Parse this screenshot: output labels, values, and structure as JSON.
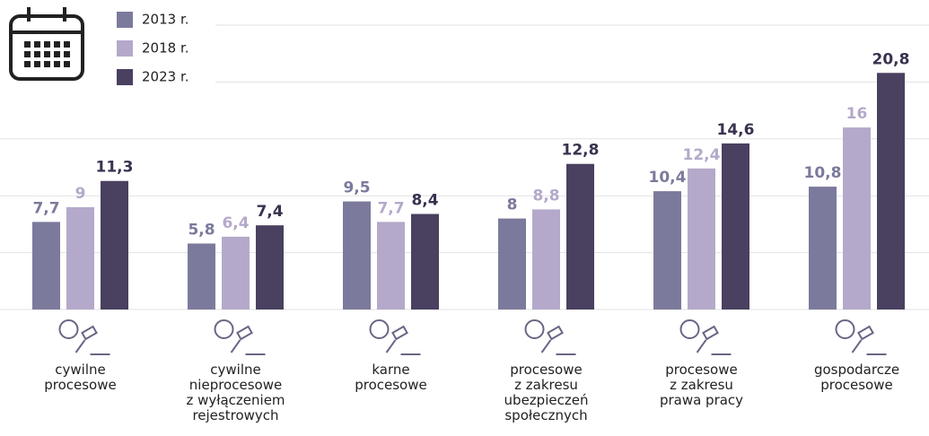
{
  "chart_data": {
    "type": "bar",
    "categories": [
      "cywilne\nprocesowe",
      "cywilne\nnieprocesowe\nz wyłączeniem\nrejestrowych",
      "karne\nprocesowe",
      "procesowe\nz zakresu\nubezpieczeń\nspołecznych",
      "procesowe\nz zakresu\nprawa pracy",
      "gospodarcze\nprocesowe"
    ],
    "series": [
      {
        "name": "2013 r.",
        "color": "#7b7a9c",
        "values": [
          7.7,
          5.8,
          9.5,
          8,
          10.4,
          10.8
        ],
        "value_labels": [
          "7,7",
          "5,8",
          "9,5",
          "8",
          "10,4",
          "10,8"
        ]
      },
      {
        "name": "2018 r.",
        "color": "#b4a9ca",
        "values": [
          9,
          6.4,
          7.7,
          8.8,
          12.4,
          16
        ],
        "value_labels": [
          "9",
          "6,4",
          "7,7",
          "8,8",
          "12,4",
          "16"
        ]
      },
      {
        "name": "2023 r.",
        "color": "#4a405f",
        "values": [
          11.3,
          7.4,
          8.4,
          12.8,
          14.6,
          20.8
        ],
        "value_labels": [
          "11,3",
          "7,4",
          "8,4",
          "12,8",
          "14,6",
          "20,8"
        ]
      }
    ],
    "ylim": [
      0,
      25
    ],
    "yticks": [
      0,
      5,
      10,
      15,
      20,
      25
    ],
    "grid": true,
    "legend": "top-left"
  }
}
